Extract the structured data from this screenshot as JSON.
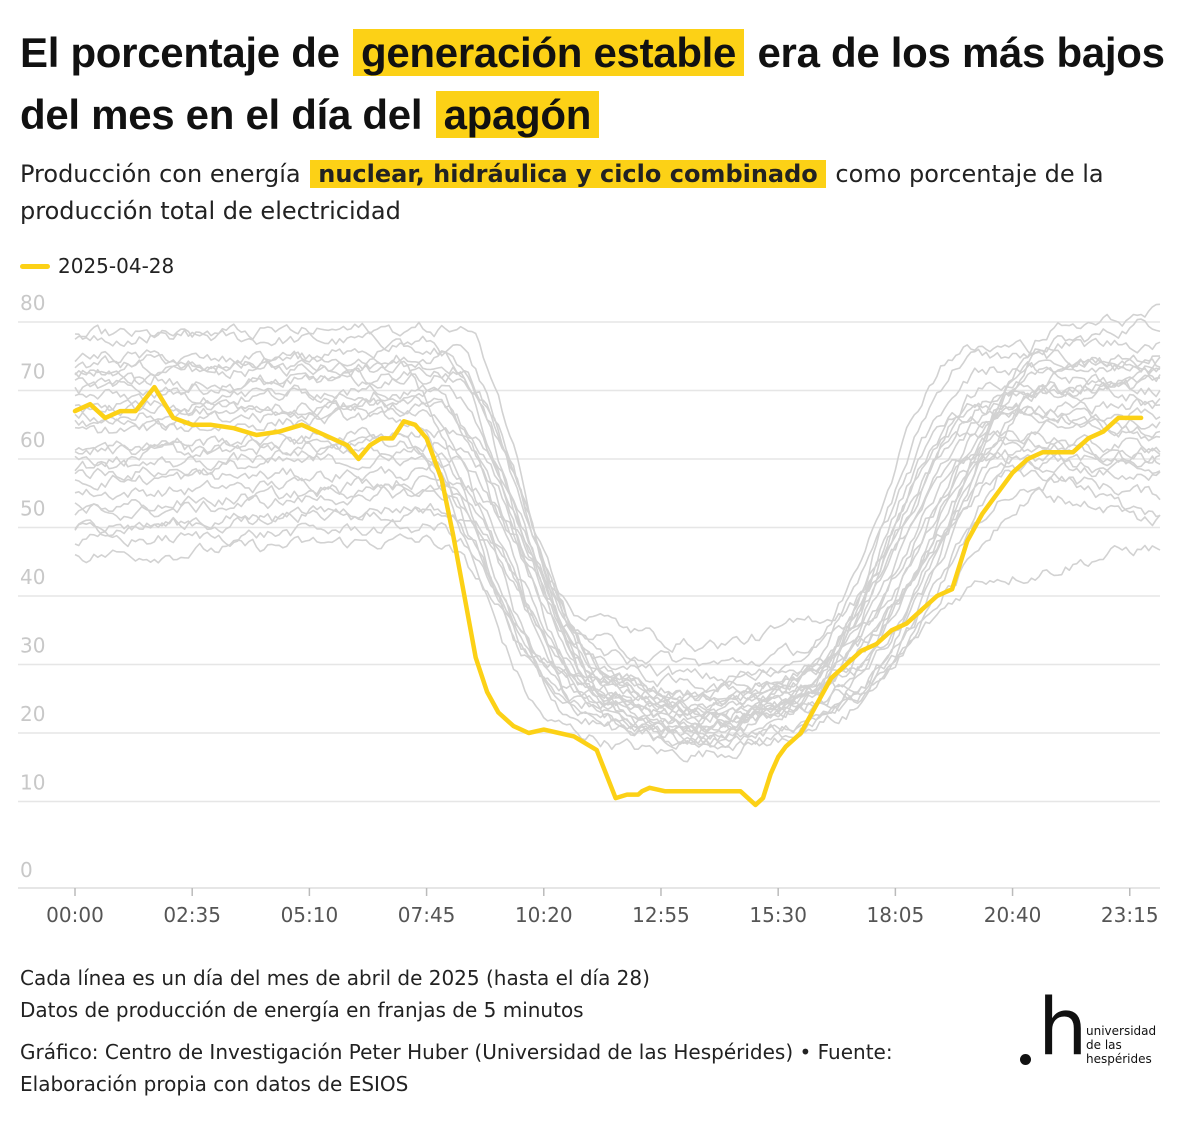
{
  "header": {
    "title_part1": "El porcentaje de ",
    "title_highlight1": "generación estable",
    "title_part2": " era de los más bajos del mes en el día del ",
    "title_highlight2": "apagón",
    "subtitle_part1": "Producción con energía ",
    "subtitle_highlight": "nuclear, hidráulica y ciclo combinado",
    "subtitle_part2": " como porcentaje de la producción total de electricidad"
  },
  "legend": {
    "label": "2025-04-28"
  },
  "colors": {
    "highlight": "#fcd116",
    "background_lines": "#d2d2d2",
    "grid": "#e6e6e6"
  },
  "chart_data": {
    "type": "line",
    "title": "",
    "xlabel": "",
    "ylabel": "",
    "ylim": [
      0,
      80
    ],
    "xlim_minutes": [
      0,
      1435
    ],
    "x_tick_labels": [
      "00:00",
      "02:35",
      "05:10",
      "07:45",
      "10:20",
      "12:55",
      "15:30",
      "18:05",
      "20:40",
      "23:15"
    ],
    "y_tick_labels": [
      "0",
      "10",
      "20",
      "30",
      "40",
      "50",
      "60",
      "70",
      "80"
    ],
    "grid": true,
    "legend_position": "top-left",
    "highlight_series": {
      "name": "2025-04-28",
      "x": [
        "00:00",
        "00:20",
        "00:40",
        "01:00",
        "01:20",
        "01:45",
        "02:10",
        "02:35",
        "03:00",
        "03:30",
        "04:00",
        "04:30",
        "05:00",
        "05:30",
        "06:00",
        "06:15",
        "06:30",
        "06:45",
        "07:00",
        "07:15",
        "07:30",
        "07:45",
        "08:05",
        "08:20",
        "08:35",
        "08:50",
        "09:05",
        "09:20",
        "09:40",
        "10:00",
        "10:20",
        "10:40",
        "11:00",
        "11:30",
        "11:55",
        "12:10",
        "12:25",
        "12:30",
        "12:40",
        "13:00",
        "13:20",
        "13:40",
        "14:00",
        "14:20",
        "14:40",
        "15:00",
        "15:10",
        "15:20",
        "15:30",
        "15:40",
        "16:00",
        "16:20",
        "16:40",
        "17:00",
        "17:20",
        "17:40",
        "18:00",
        "18:20",
        "18:40",
        "19:00",
        "19:20",
        "19:40",
        "20:00",
        "20:20",
        "20:40",
        "21:00",
        "21:20",
        "21:40",
        "22:00",
        "22:20",
        "22:40",
        "23:00",
        "23:20",
        "23:30"
      ],
      "y": [
        67,
        68,
        66,
        67,
        67,
        70.5,
        66,
        65,
        65,
        64.5,
        63.5,
        64,
        65,
        63.5,
        62,
        60,
        62,
        63,
        63,
        65.5,
        65,
        63,
        57,
        49,
        40,
        31,
        26,
        23,
        21,
        20,
        20.5,
        20,
        19.5,
        17.5,
        10.5,
        11,
        11,
        11.5,
        12,
        11.5,
        11.5,
        11.5,
        11.5,
        11.5,
        11.5,
        9.5,
        10.5,
        14,
        16.5,
        18,
        20,
        24,
        28,
        30,
        32,
        33,
        35,
        36,
        38,
        40,
        41,
        48,
        52,
        55,
        58,
        60,
        61,
        61,
        61,
        63,
        64,
        66,
        66,
        66
      ]
    },
    "background_series_note": "Cada línea es un día del mes de abril de 2025 (hasta el día 28)",
    "background_series": [
      {
        "start": 67,
        "night": 68,
        "min": 19,
        "evening": 70,
        "end": 72
      },
      {
        "start": 72,
        "night": 74,
        "min": 23,
        "evening": 75,
        "end": 74
      },
      {
        "start": 78,
        "night": 77,
        "min": 25,
        "evening": 77,
        "end": 80
      },
      {
        "start": 60,
        "night": 63,
        "min": 17,
        "evening": 63,
        "end": 60
      },
      {
        "start": 55,
        "night": 57,
        "min": 21,
        "evening": 60,
        "end": 58
      },
      {
        "start": 50,
        "night": 53,
        "min": 20,
        "evening": 58,
        "end": 55
      },
      {
        "start": 46,
        "night": 48,
        "min": 19,
        "evening": 43,
        "end": 47
      },
      {
        "start": 70,
        "night": 72,
        "min": 28,
        "evening": 72,
        "end": 70
      },
      {
        "start": 75,
        "night": 73,
        "min": 26,
        "evening": 74,
        "end": 73
      },
      {
        "start": 64,
        "night": 66,
        "min": 22,
        "evening": 65,
        "end": 63
      },
      {
        "start": 58,
        "night": 60,
        "min": 24,
        "evening": 68,
        "end": 65
      },
      {
        "start": 52,
        "night": 55,
        "min": 22,
        "evening": 62,
        "end": 62
      },
      {
        "start": 48,
        "night": 50,
        "min": 18,
        "evening": 55,
        "end": 52
      },
      {
        "start": 68,
        "night": 70,
        "min": 30,
        "evening": 73,
        "end": 75
      },
      {
        "start": 73,
        "night": 76,
        "min": 27,
        "evening": 76,
        "end": 77
      },
      {
        "start": 62,
        "night": 64,
        "min": 21,
        "evening": 67,
        "end": 68
      },
      {
        "start": 57,
        "night": 58,
        "min": 20,
        "evening": 64,
        "end": 60
      },
      {
        "start": 66,
        "night": 68,
        "min": 33,
        "evening": 70,
        "end": 71
      },
      {
        "start": 71,
        "night": 72,
        "min": 25,
        "evening": 71,
        "end": 69
      },
      {
        "start": 78,
        "night": 79,
        "min": 22,
        "evening": 79,
        "end": 81
      },
      {
        "start": 53,
        "night": 56,
        "min": 23,
        "evening": 61,
        "end": 57
      },
      {
        "start": 61,
        "night": 62,
        "min": 19,
        "evening": 66,
        "end": 64
      },
      {
        "start": 69,
        "night": 70,
        "min": 21,
        "evening": 69,
        "end": 72
      },
      {
        "start": 74,
        "night": 75,
        "min": 24,
        "evening": 73,
        "end": 74
      },
      {
        "start": 59,
        "night": 61,
        "min": 26,
        "evening": 59,
        "end": 61
      },
      {
        "start": 65,
        "night": 67,
        "min": 20,
        "evening": 67,
        "end": 66
      },
      {
        "start": 50,
        "night": 52,
        "min": 23,
        "evening": 57,
        "end": 51
      }
    ]
  },
  "notes": {
    "line1": "Cada línea es un día del mes de abril de 2025 (hasta el día 28)",
    "line2": "Datos de producción de energía en franjas de 5 minutos",
    "line3": "Gráfico: Centro de Investigación Peter Huber (Universidad de las Hespérides) • Fuente: Elaboración propia con datos de ESIOS"
  },
  "logo": {
    "mark": "h",
    "line1": "universidad",
    "line2": "de las",
    "line3": "hespérides"
  }
}
